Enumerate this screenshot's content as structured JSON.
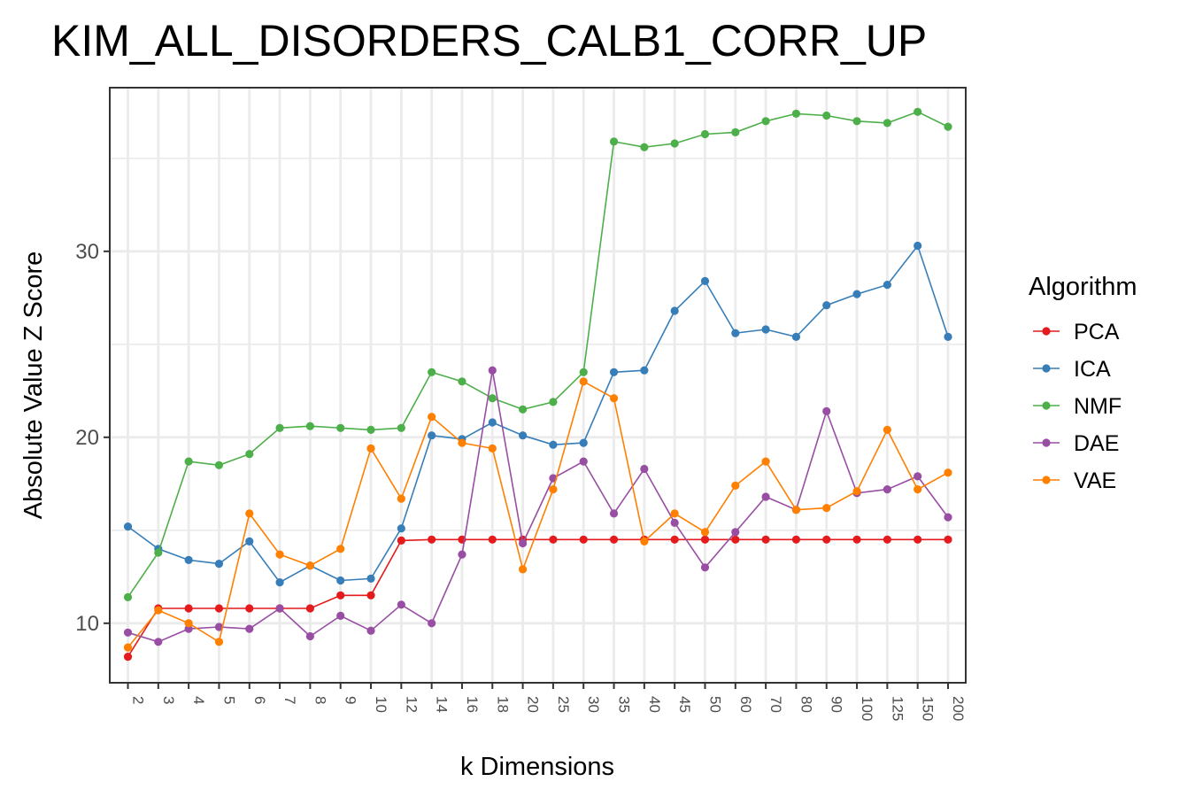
{
  "chart_data": {
    "type": "line",
    "title": "KIM_ALL_DISORDERS_CALB1_CORR_UP",
    "xlabel": "k Dimensions",
    "ylabel": "Absolute Value Z Score",
    "categories": [
      "2",
      "3",
      "4",
      "5",
      "6",
      "7",
      "8",
      "9",
      "10",
      "12",
      "14",
      "16",
      "18",
      "20",
      "25",
      "30",
      "35",
      "40",
      "45",
      "50",
      "60",
      "70",
      "80",
      "90",
      "100",
      "125",
      "150",
      "200"
    ],
    "y_ticks": [
      "10",
      "20",
      "30"
    ],
    "ylim": [
      6.8,
      38.8
    ],
    "grid": true,
    "legend": {
      "title": "Algorithm",
      "position": "right"
    },
    "series": [
      {
        "name": "PCA",
        "color": "#e41a1c",
        "values": [
          8.2,
          10.8,
          10.8,
          10.8,
          10.8,
          10.8,
          10.8,
          11.5,
          11.5,
          14.45,
          14.5,
          14.5,
          14.5,
          14.5,
          14.5,
          14.5,
          14.5,
          14.5,
          14.5,
          14.5,
          14.5,
          14.5,
          14.5,
          14.5,
          14.5,
          14.5,
          14.5,
          14.5
        ]
      },
      {
        "name": "ICA",
        "color": "#377eb8",
        "values": [
          15.2,
          14.0,
          13.4,
          13.2,
          14.4,
          12.2,
          13.1,
          12.3,
          12.4,
          15.1,
          20.1,
          19.9,
          20.8,
          20.1,
          19.6,
          19.7,
          23.5,
          23.6,
          26.8,
          28.4,
          25.6,
          25.8,
          25.4,
          27.1,
          27.7,
          28.2,
          30.3,
          25.4
        ]
      },
      {
        "name": "NMF",
        "color": "#4daf4a",
        "values": [
          11.4,
          13.8,
          18.7,
          18.5,
          19.1,
          20.5,
          20.6,
          20.5,
          20.4,
          20.5,
          23.5,
          23.0,
          22.1,
          21.5,
          21.9,
          23.5,
          35.9,
          35.6,
          35.8,
          36.3,
          36.4,
          37.0,
          37.4,
          37.3,
          37.0,
          36.9,
          37.5,
          36.7
        ]
      },
      {
        "name": "DAE",
        "color": "#984ea3",
        "values": [
          9.5,
          9.0,
          9.7,
          9.8,
          9.7,
          10.8,
          9.3,
          10.4,
          9.6,
          11.0,
          10.0,
          13.7,
          23.6,
          14.3,
          17.8,
          18.7,
          15.9,
          18.3,
          15.4,
          13.0,
          14.9,
          16.8,
          16.1,
          21.4,
          17.0,
          17.2,
          17.9,
          15.7
        ]
      },
      {
        "name": "VAE",
        "color": "#ff7f00",
        "values": [
          8.7,
          10.7,
          10.0,
          9.0,
          15.9,
          13.7,
          13.1,
          14.0,
          19.4,
          16.7,
          21.1,
          19.7,
          19.4,
          12.9,
          17.2,
          23.0,
          22.1,
          14.4,
          15.9,
          14.9,
          17.4,
          18.7,
          16.1,
          16.2,
          17.1,
          20.4,
          17.2,
          18.1
        ]
      }
    ]
  }
}
